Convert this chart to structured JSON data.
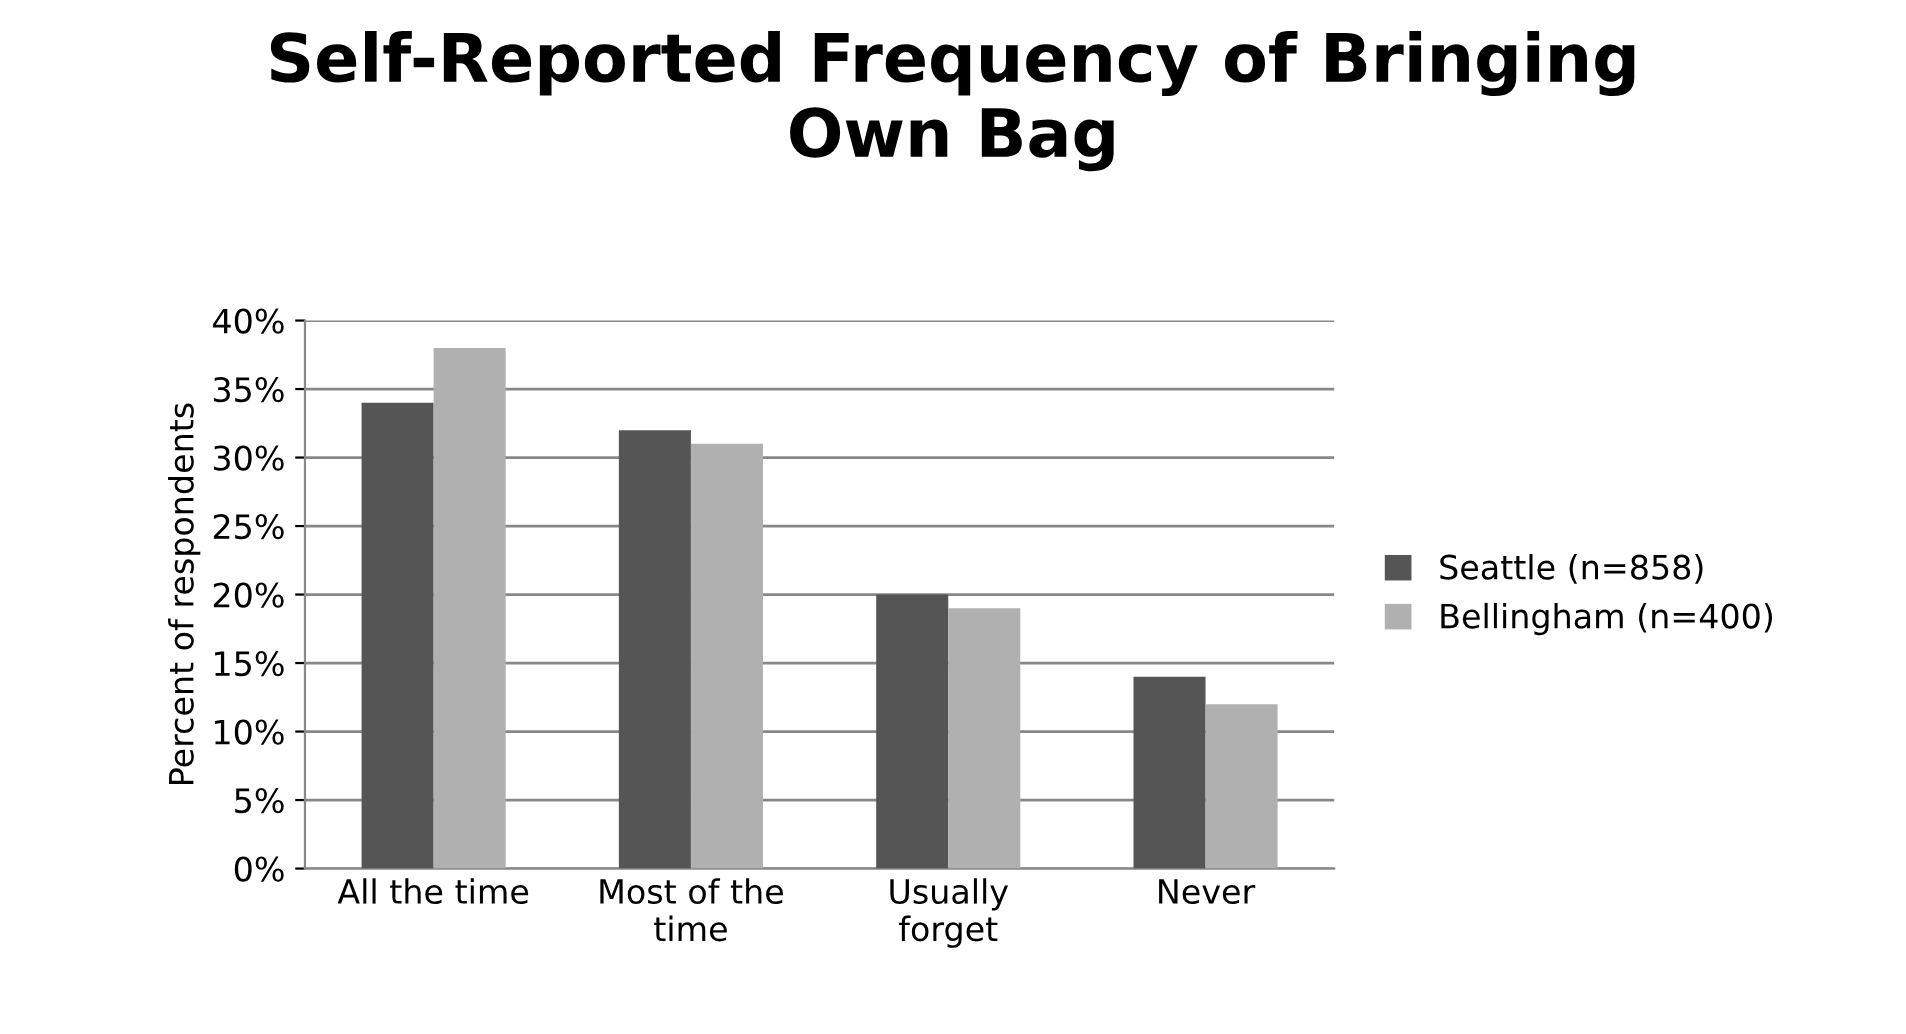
{
  "chart_data": {
    "type": "bar",
    "title": "Self-Reported Frequency of Bringing\nOwn Bag",
    "ylabel": "Percent of respondents",
    "categories": [
      "All the time",
      "Most of the\ntime",
      "Usually\nforget",
      "Never"
    ],
    "series": [
      {
        "name": "Seattle (n=858)",
        "color": "#555555",
        "values": [
          34,
          32,
          20,
          14
        ]
      },
      {
        "name": "Bellingham (n=400)",
        "color": "#b0b0b0",
        "values": [
          38,
          31,
          19,
          12
        ]
      }
    ],
    "ylim": [
      0,
      40
    ],
    "yticks": [
      {
        "value": 0,
        "label": "0%"
      },
      {
        "value": 5,
        "label": "5%"
      },
      {
        "value": 10,
        "label": "10%"
      },
      {
        "value": 15,
        "label": "15%"
      },
      {
        "value": 20,
        "label": "20%"
      },
      {
        "value": 25,
        "label": "25%"
      },
      {
        "value": 30,
        "label": "30%"
      },
      {
        "value": 35,
        "label": "35%"
      },
      {
        "value": 40,
        "label": "40%"
      }
    ],
    "grid": "y",
    "legend": "right"
  }
}
